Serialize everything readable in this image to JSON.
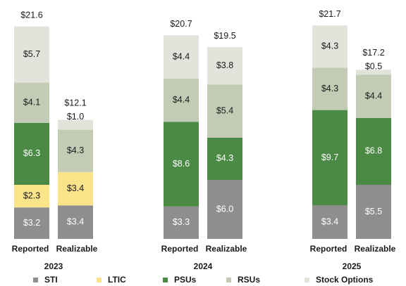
{
  "chart_data": {
    "type": "bar",
    "stacked": true,
    "unit_prefix": "$",
    "groups": [
      {
        "year": "2023",
        "bars": [
          {
            "label": "Reported",
            "total": "$21.6",
            "segments": [
              {
                "name": "STI",
                "value": 3.2,
                "label": "$3.2"
              },
              {
                "name": "LTIC",
                "value": 2.3,
                "label": "$2.3"
              },
              {
                "name": "PSUs",
                "value": 6.3,
                "label": "$6.3"
              },
              {
                "name": "RSUs",
                "value": 4.1,
                "label": "$4.1"
              },
              {
                "name": "Stock Options",
                "value": 5.7,
                "label": "$5.7"
              }
            ]
          },
          {
            "label": "Realizable",
            "total": "$12.1",
            "segments": [
              {
                "name": "STI",
                "value": 3.4,
                "label": "$3.4"
              },
              {
                "name": "LTIC",
                "value": 3.4,
                "label": "$3.4"
              },
              {
                "name": "RSUs",
                "value": 4.3,
                "label": "$4.3"
              },
              {
                "name": "Stock Options",
                "value": 1.0,
                "label": "$1.0"
              }
            ]
          }
        ]
      },
      {
        "year": "2024",
        "bars": [
          {
            "label": "Reported",
            "total": "$20.7",
            "segments": [
              {
                "name": "STI",
                "value": 3.3,
                "label": "$3.3"
              },
              {
                "name": "PSUs",
                "value": 8.6,
                "label": "$8.6"
              },
              {
                "name": "RSUs",
                "value": 4.4,
                "label": "$4.4"
              },
              {
                "name": "Stock Options",
                "value": 4.4,
                "label": "$4.4"
              }
            ]
          },
          {
            "label": "Realizable",
            "total": "$19.5",
            "segments": [
              {
                "name": "STI",
                "value": 6.0,
                "label": "$6.0"
              },
              {
                "name": "PSUs",
                "value": 4.3,
                "label": "$4.3"
              },
              {
                "name": "RSUs",
                "value": 5.4,
                "label": "$5.4"
              },
              {
                "name": "Stock Options",
                "value": 3.8,
                "label": "$3.8"
              }
            ]
          }
        ]
      },
      {
        "year": "2025",
        "bars": [
          {
            "label": "Reported",
            "total": "$21.7",
            "segments": [
              {
                "name": "STI",
                "value": 3.4,
                "label": "$3.4"
              },
              {
                "name": "PSUs",
                "value": 9.7,
                "label": "$9.7"
              },
              {
                "name": "RSUs",
                "value": 4.3,
                "label": "$4.3"
              },
              {
                "name": "Stock Options",
                "value": 4.3,
                "label": "$4.3"
              }
            ]
          },
          {
            "label": "Realizable",
            "total": "$17.2",
            "segments": [
              {
                "name": "STI",
                "value": 5.5,
                "label": "$5.5"
              },
              {
                "name": "PSUs",
                "value": 6.8,
                "label": "$6.8"
              },
              {
                "name": "RSUs",
                "value": 4.4,
                "label": "$4.4"
              },
              {
                "name": "Stock Options",
                "value": 0.5,
                "label": "$0.5"
              }
            ]
          }
        ]
      }
    ],
    "legend": [
      {
        "name": "STI",
        "color": "#8e8e90"
      },
      {
        "name": "LTIC",
        "color": "#fbe38a"
      },
      {
        "name": "PSUs",
        "color": "#4b8a45"
      },
      {
        "name": "RSUs",
        "color": "#c3cbb5"
      },
      {
        "name": "Stock Options",
        "color": "#e2e4dc"
      }
    ],
    "legend_placement": "bottom",
    "grid": false
  }
}
